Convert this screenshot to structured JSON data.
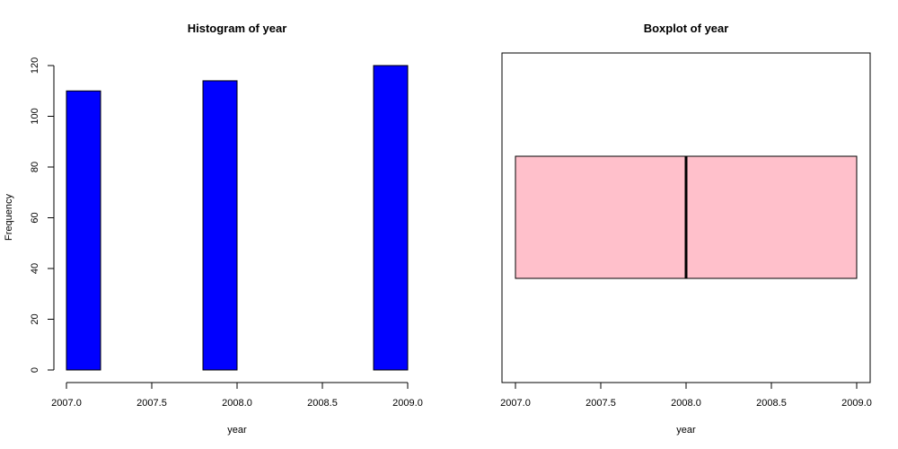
{
  "chart_data": [
    {
      "type": "histogram",
      "title": "Histogram of year",
      "xlabel": "year",
      "ylabel": "Frequency",
      "bins": [
        {
          "from": 2007.0,
          "to": 2007.2,
          "count": 110
        },
        {
          "from": 2007.2,
          "to": 2007.4,
          "count": 0
        },
        {
          "from": 2007.4,
          "to": 2007.6,
          "count": 0
        },
        {
          "from": 2007.6,
          "to": 2007.8,
          "count": 0
        },
        {
          "from": 2007.8,
          "to": 2008.0,
          "count": 114
        },
        {
          "from": 2008.0,
          "to": 2008.2,
          "count": 0
        },
        {
          "from": 2008.2,
          "to": 2008.4,
          "count": 0
        },
        {
          "from": 2008.4,
          "to": 2008.6,
          "count": 0
        },
        {
          "from": 2008.6,
          "to": 2008.8,
          "count": 0
        },
        {
          "from": 2008.8,
          "to": 2009.0,
          "count": 120
        }
      ],
      "xlim": [
        2007.0,
        2009.0
      ],
      "ylim": [
        0,
        120
      ],
      "xticks": [
        "2007.0",
        "2007.5",
        "2008.0",
        "2008.5",
        "2009.0"
      ],
      "yticks": [
        "0",
        "20",
        "40",
        "60",
        "80",
        "100",
        "120"
      ],
      "bar_color": "#0000ff",
      "grid": false
    },
    {
      "type": "boxplot",
      "orientation": "horizontal",
      "title": "Boxplot of year",
      "xlabel": "year",
      "stats": {
        "min": 2007.0,
        "q1": 2007.0,
        "median": 2008.0,
        "q3": 2009.0,
        "max": 2009.0
      },
      "xlim": [
        2007.0,
        2009.0
      ],
      "xticks": [
        "2007.0",
        "2007.5",
        "2008.0",
        "2008.5",
        "2009.0"
      ],
      "box_color": "#ffc0cb",
      "grid": false
    }
  ]
}
